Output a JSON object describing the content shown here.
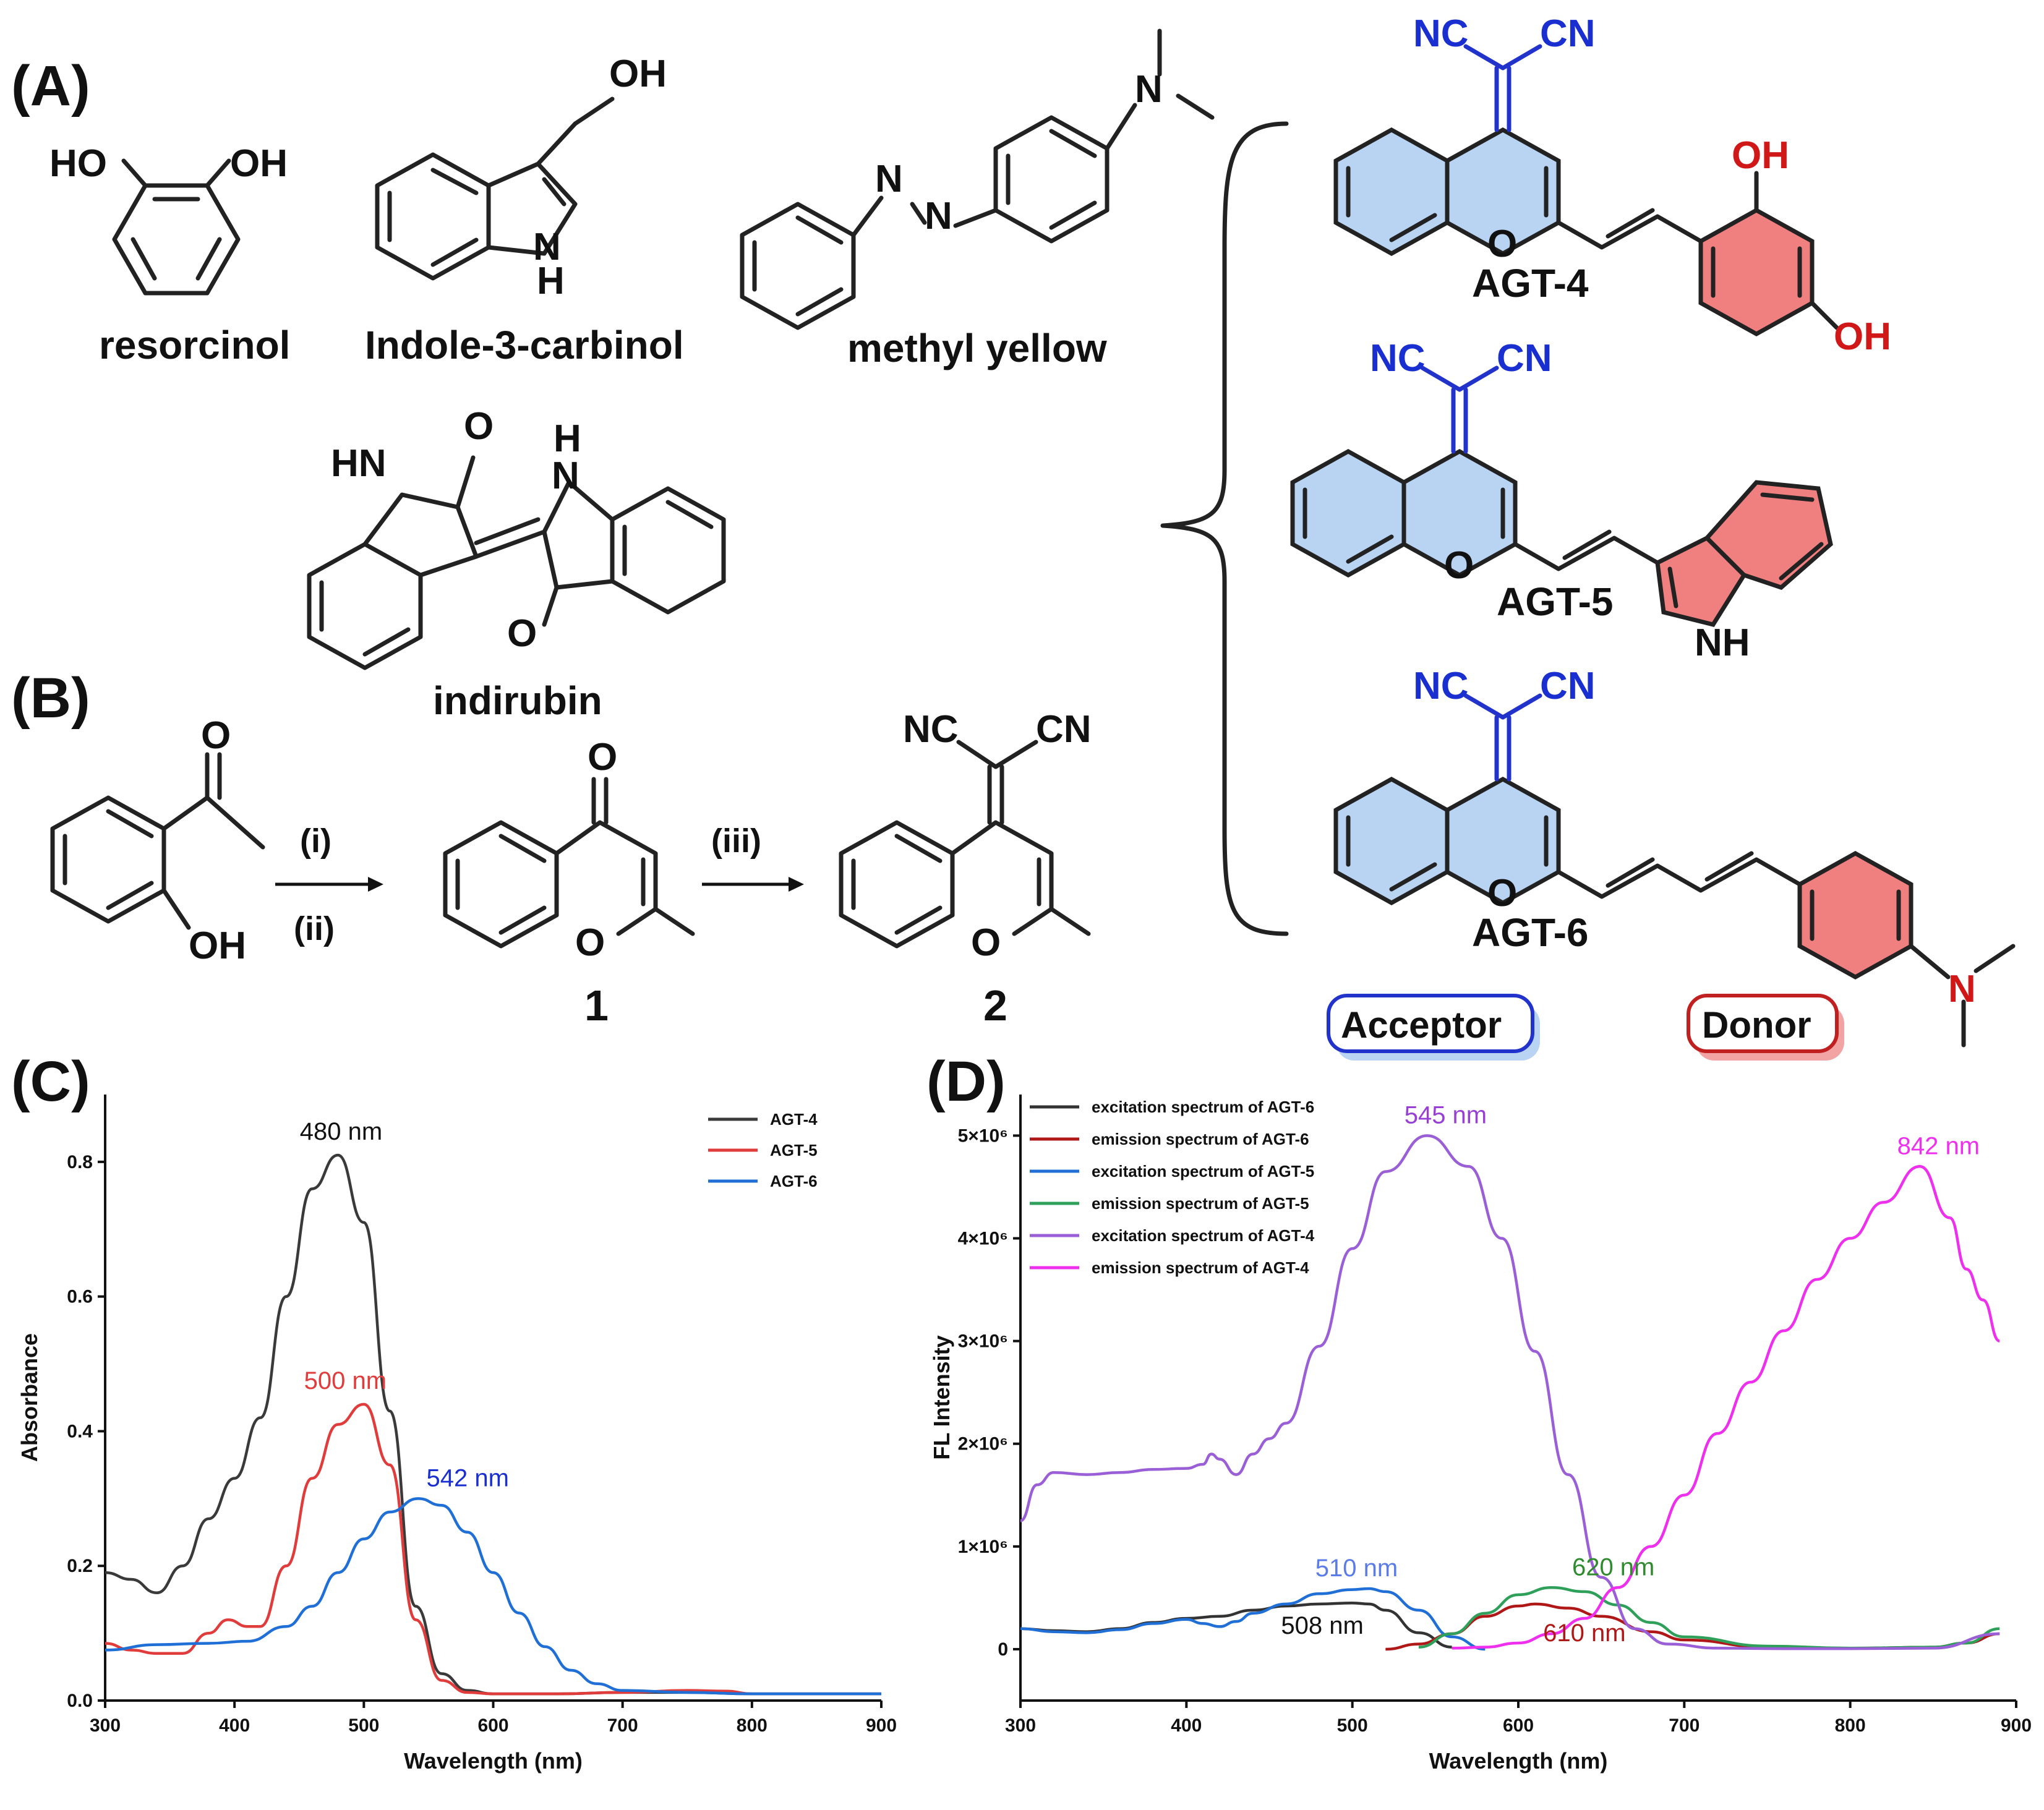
{
  "panels": {
    "a": "(A)",
    "b": "(B)",
    "c": "(C)",
    "d": "(D)"
  },
  "compounds": {
    "resorcinol": "resorcinol",
    "indole": "Indole-3-carbinol",
    "methyl_yellow": "methyl yellow",
    "indirubin": "indirubin",
    "c1": "1",
    "c2": "2",
    "agt4": "AGT-4",
    "agt5": "AGT-5",
    "agt6": "AGT-6"
  },
  "atoms": {
    "HO": "HO",
    "OH": "OH",
    "O": "O",
    "N": "N",
    "H": "H",
    "HN": "HN",
    "NH": "NH",
    "NC": "NC",
    "CN": "CN"
  },
  "reaction": {
    "step_i": "(i)",
    "step_ii": "(ii)",
    "step_iii": "(iii)"
  },
  "badges": {
    "acceptor": "Acceptor",
    "donor": "Donor"
  },
  "colors": {
    "acceptor_fill": "#b9d3f3",
    "donor_fill": "#f07f7f",
    "acceptor_text": "#1a2fd0",
    "donor_text": "#d01818"
  },
  "chart_data": [
    {
      "type": "line",
      "title": "(C)",
      "xlabel": "Wavelength (nm)",
      "ylabel": "Absorbance",
      "xlim": [
        300,
        900
      ],
      "ylim": [
        0,
        0.9
      ],
      "xticks": [
        "300",
        "400",
        "500",
        "600",
        "700",
        "800",
        "900"
      ],
      "yticks": [
        "0.0",
        "0.2",
        "0.4",
        "0.6",
        "0.8"
      ],
      "legend_position": "top-right",
      "series": [
        {
          "name": "AGT-4",
          "color": "#3a3a3a",
          "x": [
            300,
            320,
            340,
            360,
            380,
            400,
            420,
            440,
            460,
            480,
            500,
            520,
            540,
            560,
            580,
            600,
            650,
            700,
            750,
            800,
            850,
            900
          ],
          "y": [
            0.19,
            0.18,
            0.16,
            0.2,
            0.27,
            0.33,
            0.42,
            0.6,
            0.76,
            0.81,
            0.71,
            0.43,
            0.14,
            0.04,
            0.015,
            0.01,
            0.01,
            0.012,
            0.012,
            0.01,
            0.01,
            0.01
          ]
        },
        {
          "name": "AGT-5",
          "color": "#e03c3c",
          "x": [
            300,
            320,
            340,
            360,
            380,
            395,
            410,
            420,
            440,
            460,
            480,
            500,
            520,
            540,
            560,
            580,
            600,
            650,
            700,
            750,
            780,
            800,
            850,
            900
          ],
          "y": [
            0.085,
            0.075,
            0.07,
            0.07,
            0.1,
            0.12,
            0.11,
            0.11,
            0.2,
            0.33,
            0.41,
            0.44,
            0.35,
            0.12,
            0.03,
            0.012,
            0.01,
            0.01,
            0.012,
            0.015,
            0.014,
            0.01,
            0.01,
            0.01
          ]
        },
        {
          "name": "AGT-6",
          "color": "#1f6fd6",
          "x": [
            300,
            340,
            380,
            410,
            440,
            460,
            480,
            500,
            520,
            542,
            560,
            580,
            600,
            620,
            640,
            660,
            680,
            700,
            750,
            800,
            850,
            900
          ],
          "y": [
            0.075,
            0.083,
            0.085,
            0.088,
            0.11,
            0.14,
            0.19,
            0.24,
            0.28,
            0.3,
            0.29,
            0.25,
            0.19,
            0.13,
            0.08,
            0.045,
            0.025,
            0.015,
            0.012,
            0.01,
            0.01,
            0.01
          ]
        }
      ],
      "annotations": [
        {
          "text": "480 nm",
          "x": 480,
          "y": 0.81,
          "color": "#111111"
        },
        {
          "text": "500 nm",
          "x": 500,
          "y": 0.44,
          "color": "#e03c3c"
        },
        {
          "text": "542 nm",
          "x": 542,
          "y": 0.3,
          "color": "#1a2fd0"
        }
      ]
    },
    {
      "type": "line",
      "title": "(D)",
      "xlabel": "Wavelength (nm)",
      "ylabel": "FL Intensity",
      "xlim": [
        300,
        900
      ],
      "ylim": [
        -500000,
        5400000
      ],
      "xticks": [
        "300",
        "400",
        "500",
        "600",
        "700",
        "800",
        "900"
      ],
      "yticks": [
        "0",
        "1×10⁶",
        "2×10⁶",
        "3×10⁶",
        "4×10⁶",
        "5×10⁶"
      ],
      "legend_position": "top-left",
      "series": [
        {
          "name": "excitation spectrum of AGT-6",
          "color": "#333333",
          "x": [
            300,
            320,
            340,
            360,
            380,
            400,
            420,
            440,
            460,
            480,
            500,
            510,
            520,
            540,
            560
          ],
          "y": [
            200000,
            180000,
            170000,
            200000,
            260000,
            300000,
            320000,
            380000,
            420000,
            440000,
            450000,
            440000,
            380000,
            160000,
            20000
          ]
        },
        {
          "name": "emission spectrum of AGT-6",
          "color": "#b01818",
          "x": [
            520,
            540,
            560,
            580,
            600,
            610,
            630,
            650,
            680,
            700,
            750,
            800,
            850,
            870,
            890
          ],
          "y": [
            0,
            50000,
            150000,
            320000,
            420000,
            440000,
            400000,
            320000,
            170000,
            90000,
            20000,
            10000,
            20000,
            60000,
            150000
          ]
        },
        {
          "name": "excitation spectrum of AGT-5",
          "color": "#1f6fd6",
          "x": [
            300,
            320,
            340,
            360,
            380,
            400,
            410,
            420,
            430,
            440,
            460,
            480,
            500,
            510,
            520,
            540,
            560,
            580
          ],
          "y": [
            200000,
            170000,
            160000,
            190000,
            250000,
            290000,
            250000,
            220000,
            270000,
            350000,
            440000,
            540000,
            580000,
            590000,
            560000,
            380000,
            120000,
            0
          ]
        },
        {
          "name": "emission spectrum of AGT-5",
          "color": "#2ea05a",
          "x": [
            540,
            560,
            580,
            600,
            620,
            640,
            660,
            680,
            700,
            750,
            800,
            850,
            870,
            890
          ],
          "y": [
            20000,
            150000,
            350000,
            530000,
            600000,
            560000,
            430000,
            260000,
            120000,
            30000,
            10000,
            20000,
            60000,
            200000
          ]
        },
        {
          "name": "excitation spectrum of AGT-4",
          "color": "#9a5fd6",
          "x": [
            300,
            310,
            320,
            340,
            360,
            380,
            400,
            410,
            415,
            420,
            430,
            440,
            450,
            460,
            480,
            500,
            520,
            545,
            570,
            590,
            610,
            630,
            650,
            670,
            690,
            720,
            760,
            800,
            850,
            890
          ],
          "y": [
            1250000,
            1600000,
            1720000,
            1700000,
            1720000,
            1750000,
            1760000,
            1800000,
            1900000,
            1850000,
            1700000,
            1900000,
            2050000,
            2200000,
            2950000,
            3900000,
            4650000,
            5000000,
            4700000,
            4000000,
            2900000,
            1700000,
            700000,
            200000,
            50000,
            10000,
            5000,
            5000,
            10000,
            150000
          ]
        },
        {
          "name": "emission spectrum of AGT-4",
          "color": "#ee2fee",
          "x": [
            560,
            580,
            600,
            620,
            640,
            660,
            680,
            700,
            720,
            740,
            760,
            780,
            800,
            820,
            842,
            860,
            870,
            880,
            890
          ],
          "y": [
            10000,
            20000,
            60000,
            150000,
            300000,
            600000,
            1000000,
            1500000,
            2100000,
            2600000,
            3100000,
            3600000,
            4000000,
            4350000,
            4700000,
            4200000,
            3700000,
            3400000,
            3000000
          ]
        }
      ],
      "annotations": [
        {
          "text": "545 nm",
          "x": 545,
          "y": 5000000,
          "color": "#9a3fd6"
        },
        {
          "text": "842 nm",
          "x": 842,
          "y": 4700000,
          "color": "#ee2fee"
        },
        {
          "text": "510 nm",
          "x": 510,
          "y": 590000,
          "color": "#5b7ce6"
        },
        {
          "text": "620 nm",
          "x": 620,
          "y": 600000,
          "color": "#2e8b2e"
        },
        {
          "text": "508 nm",
          "x": 508,
          "y": 450000,
          "color": "#111111"
        },
        {
          "text": "610 nm",
          "x": 610,
          "y": 440000,
          "color": "#b01818"
        }
      ]
    }
  ]
}
